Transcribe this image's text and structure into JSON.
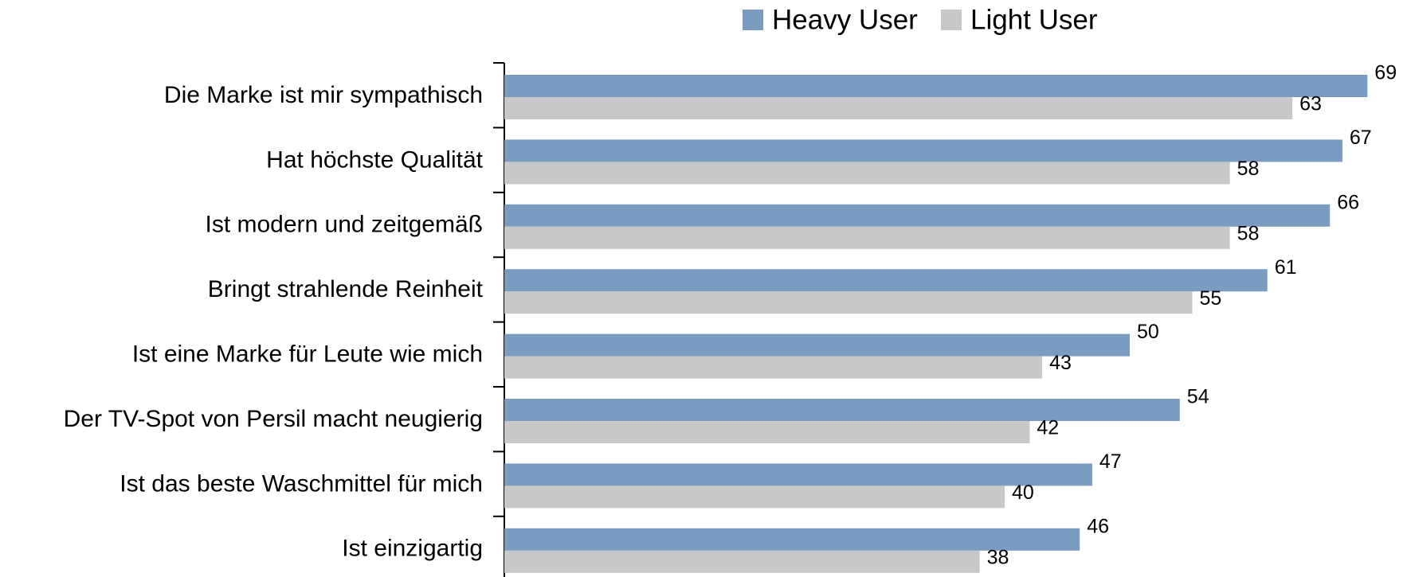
{
  "chart_data": {
    "type": "bar",
    "orientation": "horizontal",
    "categories": [
      "Die Marke ist mir sympathisch",
      "Hat höchste Qualität",
      "Ist modern und zeitgemäß",
      "Bringt strahlende Reinheit",
      "Ist eine Marke für Leute wie mich",
      "Der TV-Spot von Persil macht neugierig",
      "Ist das beste Waschmittel für mich",
      "Ist einzigartig"
    ],
    "series": [
      {
        "name": "Heavy User",
        "color": "#7a9cc0",
        "values": [
          69,
          67,
          66,
          61,
          50,
          54,
          47,
          46
        ]
      },
      {
        "name": "Light User",
        "color": "#c8c8c8",
        "values": [
          63,
          58,
          58,
          55,
          43,
          42,
          40,
          38
        ]
      }
    ],
    "legend": "top"
  }
}
